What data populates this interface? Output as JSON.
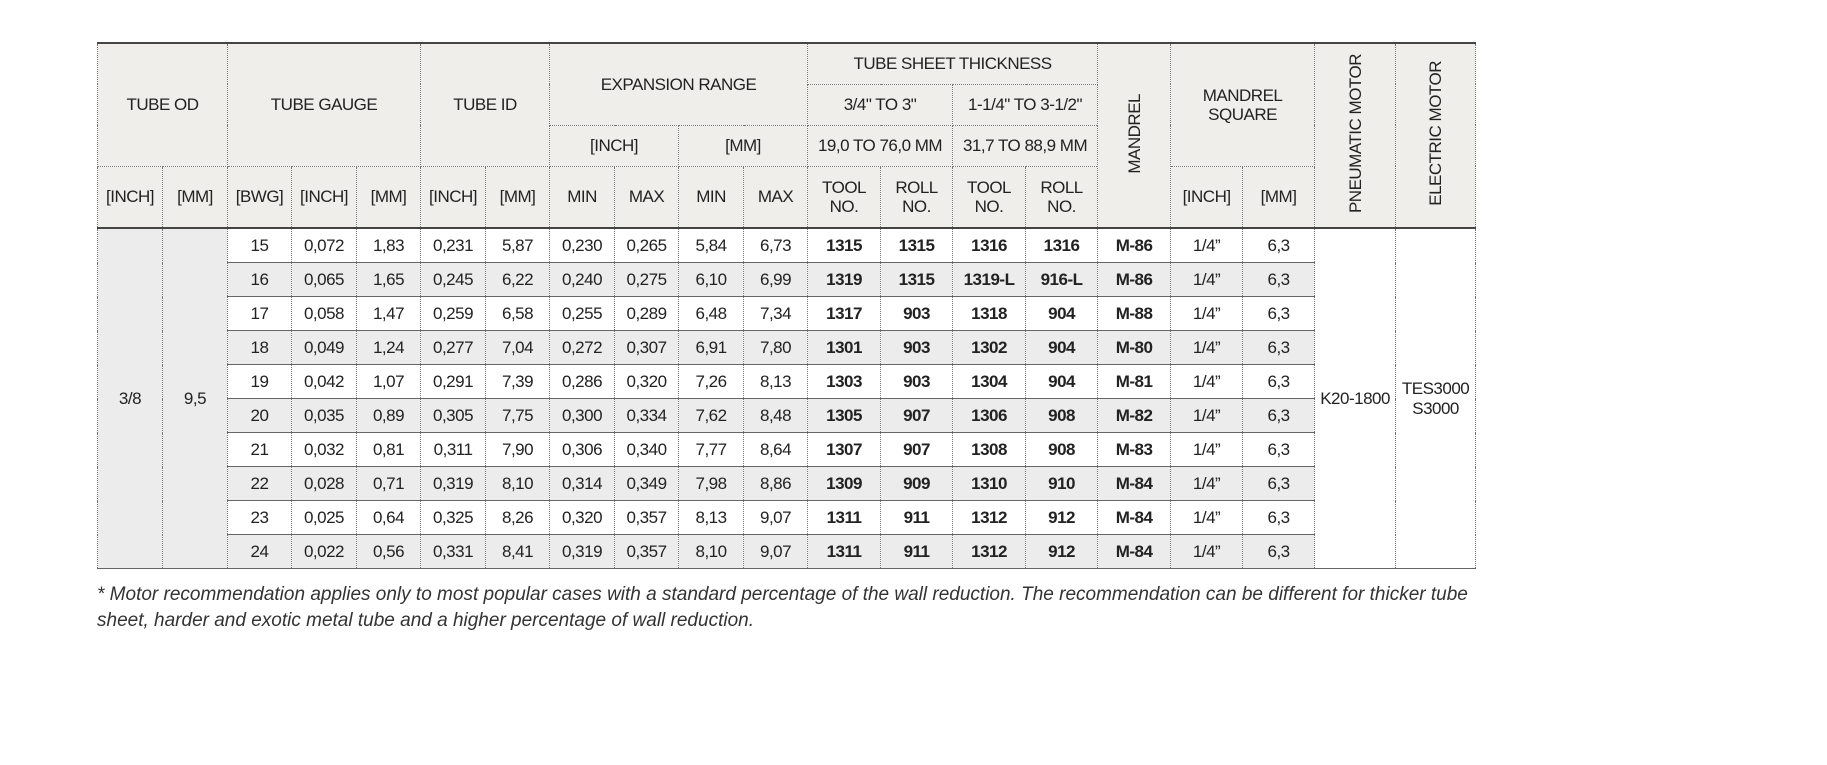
{
  "table": {
    "header": {
      "tube_od": "TUBE OD",
      "tube_gauge": "TUBE GAUGE",
      "tube_id": "TUBE ID",
      "expansion_range": "EXPANSION RANGE",
      "tube_sheet_thickness": "TUBE SHEET THICKNESS",
      "range_a": "3/4\" TO 3\"",
      "range_b": "1-1/4\" TO 3-1/2\"",
      "exp_inch": "[INCH]",
      "exp_mm": "[MM]",
      "range_a_mm": "19,0 TO 76,0 MM",
      "range_b_mm": "31,7 TO 88,9 MM",
      "mandrel": "MANDREL",
      "mandrel_square": "MANDREL SQUARE",
      "pneumatic_motor": "PNEUMATIC MOTOR",
      "electric_motor": "ELECTRIC MOTOR",
      "sub_left": [
        "[INCH]",
        "[MM]",
        "[BWG]",
        "[INCH]",
        "[MM]",
        "[INCH]",
        "[MM]",
        "MIN",
        "MAX",
        "MIN",
        "MAX",
        "TOOL NO.",
        "ROLL NO.",
        "TOOL NO.",
        "ROLL NO."
      ],
      "sub_right": [
        "[INCH]",
        "[MM]"
      ]
    },
    "tube_od_inch": "3/8",
    "tube_od_mm": "9,5",
    "pneumatic": "K20-1800",
    "electric": [
      "TES3000",
      "S3000"
    ],
    "rows": [
      [
        "15",
        "0,072",
        "1,83",
        "0,231",
        "5,87",
        "0,230",
        "0,265",
        "5,84",
        "6,73",
        "1315",
        "1315",
        "1316",
        "1316",
        "M-86",
        "1/4”",
        "6,3"
      ],
      [
        "16",
        "0,065",
        "1,65",
        "0,245",
        "6,22",
        "0,240",
        "0,275",
        "6,10",
        "6,99",
        "1319",
        "1315",
        "1319-L",
        "916-L",
        "M-86",
        "1/4”",
        "6,3"
      ],
      [
        "17",
        "0,058",
        "1,47",
        "0,259",
        "6,58",
        "0,255",
        "0,289",
        "6,48",
        "7,34",
        "1317",
        "903",
        "1318",
        "904",
        "M-88",
        "1/4”",
        "6,3"
      ],
      [
        "18",
        "0,049",
        "1,24",
        "0,277",
        "7,04",
        "0,272",
        "0,307",
        "6,91",
        "7,80",
        "1301",
        "903",
        "1302",
        "904",
        "M-80",
        "1/4”",
        "6,3"
      ],
      [
        "19",
        "0,042",
        "1,07",
        "0,291",
        "7,39",
        "0,286",
        "0,320",
        "7,26",
        "8,13",
        "1303",
        "903",
        "1304",
        "904",
        "M-81",
        "1/4”",
        "6,3"
      ],
      [
        "20",
        "0,035",
        "0,89",
        "0,305",
        "7,75",
        "0,300",
        "0,334",
        "7,62",
        "8,48",
        "1305",
        "907",
        "1306",
        "908",
        "M-82",
        "1/4”",
        "6,3"
      ],
      [
        "21",
        "0,032",
        "0,81",
        "0,311",
        "7,90",
        "0,306",
        "0,340",
        "7,77",
        "8,64",
        "1307",
        "907",
        "1308",
        "908",
        "M-83",
        "1/4”",
        "6,3"
      ],
      [
        "22",
        "0,028",
        "0,71",
        "0,319",
        "8,10",
        "0,314",
        "0,349",
        "7,98",
        "8,86",
        "1309",
        "909",
        "1310",
        "910",
        "M-84",
        "1/4”",
        "6,3"
      ],
      [
        "23",
        "0,025",
        "0,64",
        "0,325",
        "8,26",
        "0,320",
        "0,357",
        "8,13",
        "9,07",
        "1311",
        "911",
        "1312",
        "912",
        "M-84",
        "1/4”",
        "6,3"
      ],
      [
        "24",
        "0,022",
        "0,56",
        "0,331",
        "8,41",
        "0,319",
        "0,357",
        "8,10",
        "9,07",
        "1311",
        "911",
        "1312",
        "912",
        "M-84",
        "1/4”",
        "6,3"
      ]
    ]
  },
  "footnote": "* Motor recommendation applies only to most popular cases with a standard percentage of the wall reduction. The recommendation can be different for thicker tube sheet, harder and exotic metal tube and a higher percentage of wall reduction."
}
